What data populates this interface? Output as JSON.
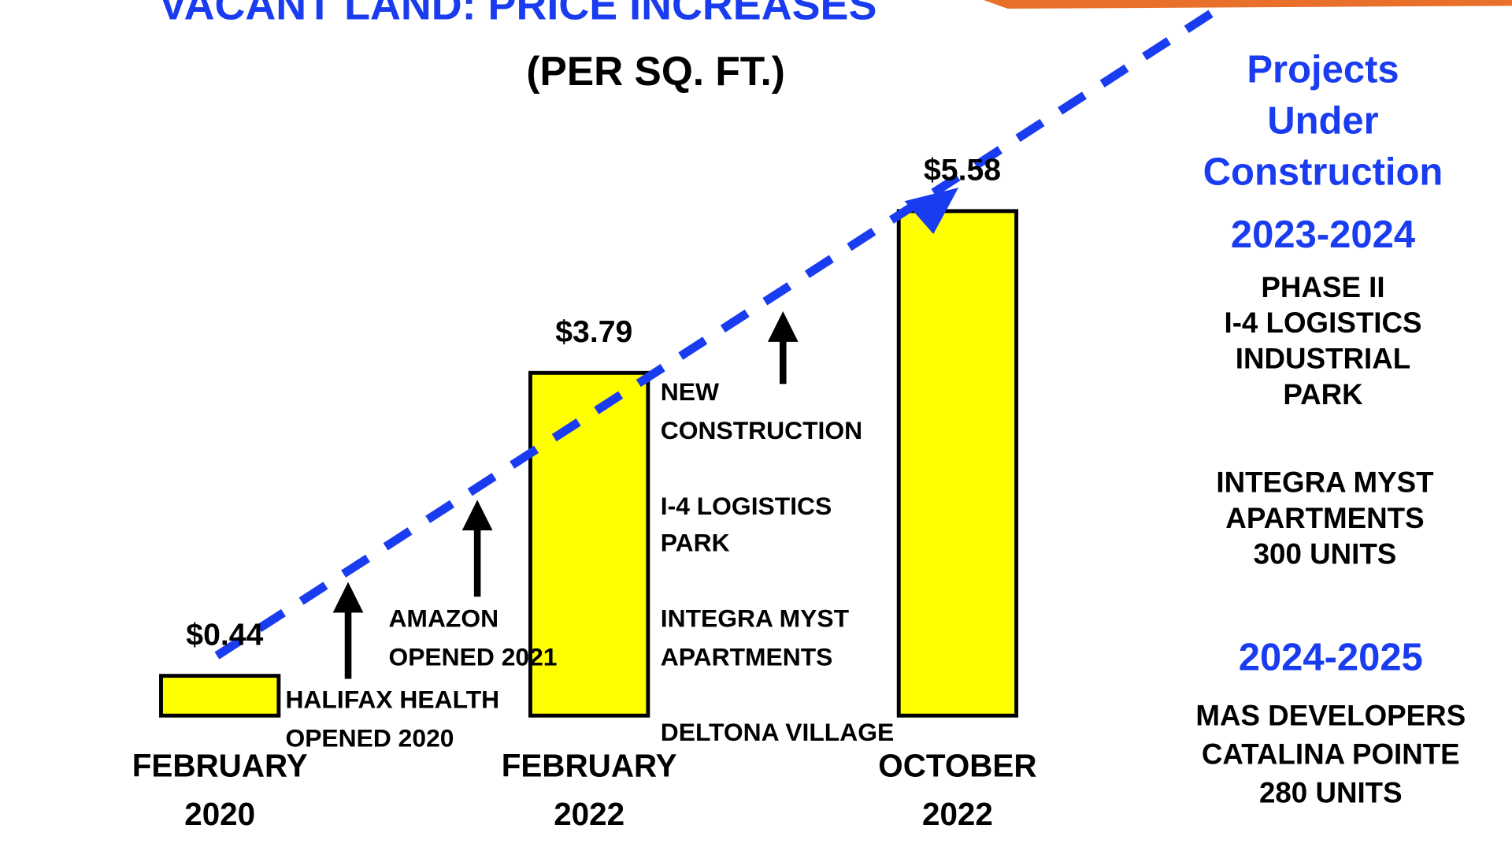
{
  "chart_data": {
    "type": "bar",
    "title": "VACANT LAND: PRICE INCREASES",
    "subtitle": "(PER SQ. FT.)",
    "categories": [
      "FEBRUARY\n2020",
      "FEBRUARY\n2022",
      "OCTOBER\n2022"
    ],
    "values": [
      0.44,
      3.79,
      5.58
    ],
    "value_labels": [
      "$0.44",
      "$3.79",
      "$5.58"
    ],
    "color": "#ffff00",
    "annotations": [
      "HALIFAX HEALTH\nOPENED 2020",
      "AMAZON\nOPENED 2021",
      "NEW\nCONSTRUCTION",
      "I-4 LOGISTICS\nPARK",
      "INTEGRA MYST\nAPARTMENTS",
      "DELTONA VILLAGE"
    ]
  },
  "side_panel": {
    "heading": "Projects\nUnder\nConstruction",
    "sections": [
      {
        "period": "2023-2024",
        "projects": [
          "PHASE II\nI-4 LOGISTICS\nINDUSTRIAL\nPARK",
          "INTEGRA MYST\nAPARTMENTS\n300 UNITS"
        ]
      },
      {
        "period": "2024-2025",
        "projects": [
          "MAS DEVELOPERS\nCATALINA POINTE\n280 UNITS"
        ]
      }
    ]
  }
}
